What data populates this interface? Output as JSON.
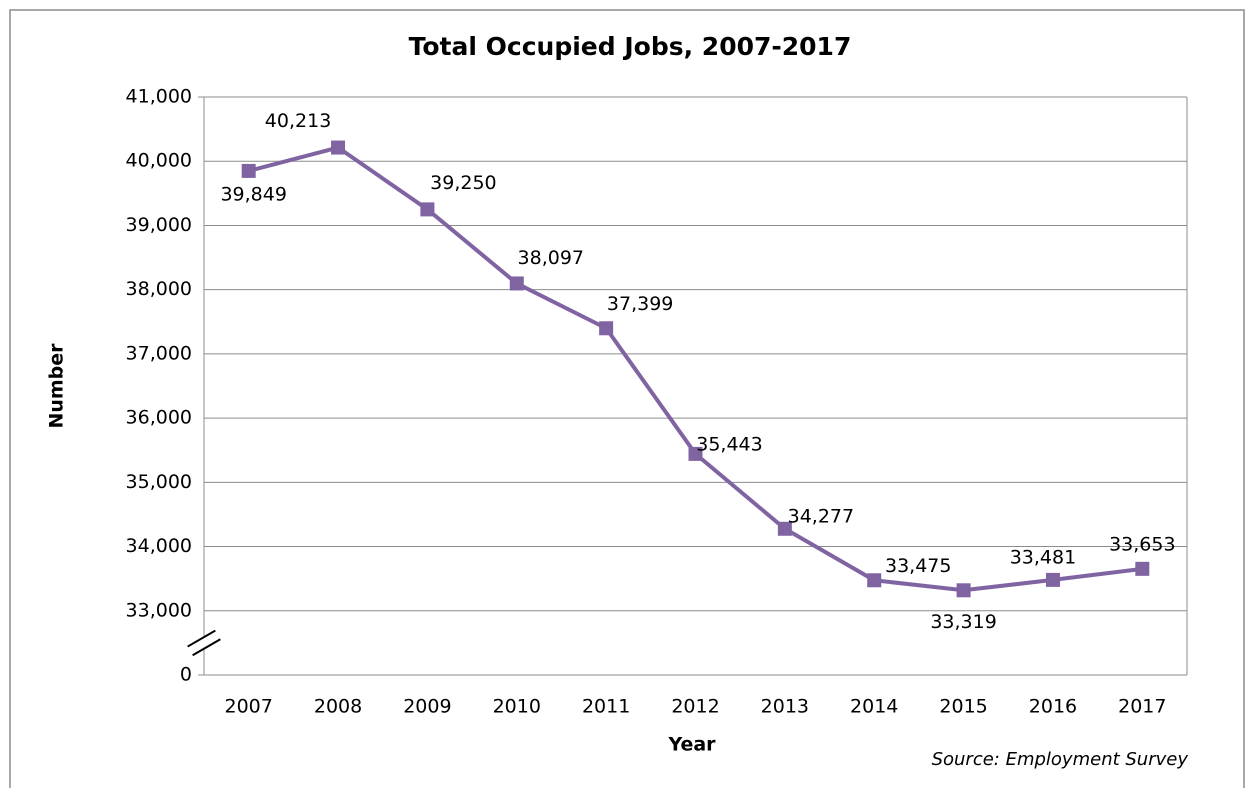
{
  "chart_data": {
    "type": "line",
    "title": "Total Occupied Jobs, 2007-2017",
    "x_label": "Year",
    "y_label": "Number",
    "source": "Source: Employment Survey",
    "categories": [
      "2007",
      "2008",
      "2009",
      "2010",
      "2011",
      "2012",
      "2013",
      "2014",
      "2015",
      "2016",
      "2017"
    ],
    "series": [
      {
        "name": "Total Occupied Jobs",
        "color": "#8064a2",
        "values": [
          39849,
          40213,
          39250,
          38097,
          37399,
          35443,
          34277,
          33475,
          33319,
          33481,
          33653
        ],
        "value_labels": [
          "39,849",
          "40,213",
          "39,250",
          "38,097",
          "37,399",
          "35,443",
          "34,277",
          "33,475",
          "33,319",
          "33,481",
          "33,653"
        ]
      }
    ],
    "ylim": [
      0,
      41000
    ],
    "yticks": [
      0,
      {
        "value": 33000,
        "label": "33,000"
      },
      {
        "value": 34000,
        "label": "34,000"
      },
      {
        "value": 35000,
        "label": "35,000"
      },
      {
        "value": 36000,
        "label": "36,000"
      },
      {
        "value": 37000,
        "label": "37,000"
      },
      {
        "value": 38000,
        "label": "38,000"
      },
      {
        "value": 39000,
        "label": "39,000"
      },
      {
        "value": 40000,
        "label": "40,000"
      },
      {
        "value": 41000,
        "label": "41,000"
      }
    ],
    "axis_break": true,
    "grid": true
  }
}
